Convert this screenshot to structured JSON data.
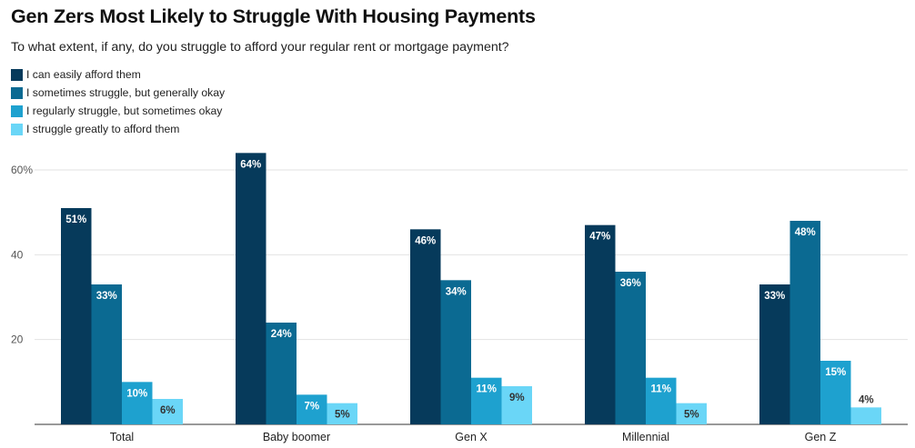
{
  "chart_data": {
    "type": "bar",
    "title": "Gen Zers Most Likely to Struggle With Housing Payments",
    "subtitle": "To what extent, if any, do you struggle to afford your regular rent or mortgage payment?",
    "categories": [
      "Total",
      "Baby boomer",
      "Gen X",
      "Millennial",
      "Gen Z"
    ],
    "series": [
      {
        "name": "I can easily afford them",
        "color": "#063a5b",
        "values": [
          51,
          64,
          46,
          47,
          33
        ],
        "labels": [
          "51%",
          "64%",
          "46%",
          "47%",
          "33%"
        ]
      },
      {
        "name": "I sometimes struggle, but generally okay",
        "color": "#0b6a92",
        "values": [
          33,
          24,
          34,
          36,
          48
        ],
        "labels": [
          "33%",
          "24%",
          "34%",
          "36%",
          "48%"
        ]
      },
      {
        "name": "I regularly struggle, but sometimes okay",
        "color": "#1ea1cf",
        "values": [
          10,
          7,
          11,
          11,
          15
        ],
        "labels": [
          "10%",
          "7%",
          "11%",
          "11%",
          "15%"
        ]
      },
      {
        "name": "I struggle greatly to afford them",
        "color": "#6ad6f7",
        "values": [
          6,
          5,
          9,
          5,
          4
        ],
        "labels": [
          "6%",
          "5%",
          "9%",
          "5%",
          "4%"
        ]
      }
    ],
    "ylim": [
      0,
      60
    ],
    "yticks": [
      20,
      40,
      60
    ],
    "ytick_labels": [
      "20",
      "40",
      "60%"
    ],
    "xlabel": "",
    "ylabel": "",
    "grid": true,
    "legend": "top-left"
  }
}
